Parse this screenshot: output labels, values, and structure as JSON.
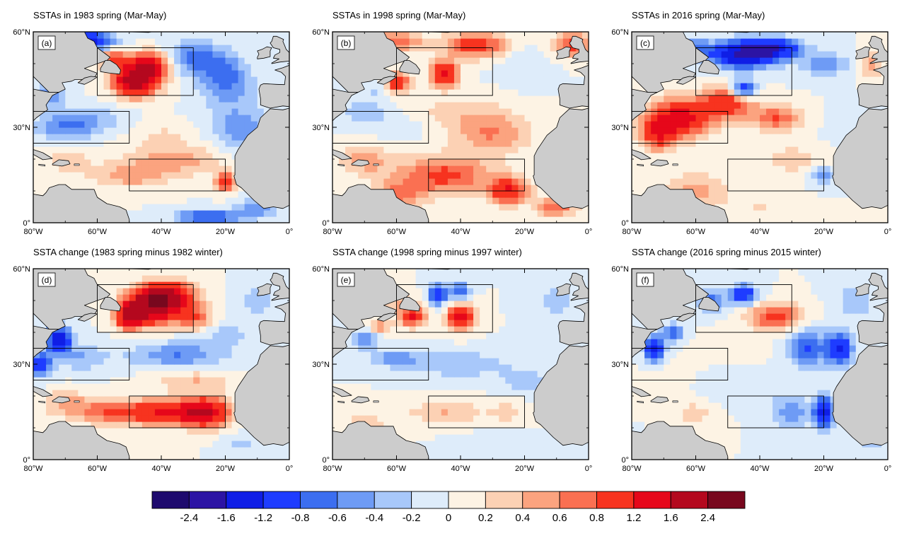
{
  "panels": [
    {
      "id": "a",
      "title": "SSTAs in 1983 spring (Mar-May)",
      "label": "(a)",
      "blobs": [
        [
          -48,
          45,
          2.0,
          7,
          5
        ],
        [
          -43,
          50,
          1.3,
          6,
          4
        ],
        [
          -55,
          52,
          0.8,
          5,
          3
        ],
        [
          -65,
          57,
          -1.6,
          9,
          3
        ],
        [
          -30,
          52,
          -0.7,
          10,
          5
        ],
        [
          -20,
          45,
          -0.7,
          8,
          7
        ],
        [
          -15,
          30,
          -0.5,
          10,
          8
        ],
        [
          -70,
          30,
          -0.6,
          10,
          4
        ],
        [
          -75,
          40,
          -0.5,
          5,
          5
        ],
        [
          -60,
          33,
          -0.3,
          10,
          4
        ],
        [
          -35,
          20,
          0.5,
          15,
          5
        ],
        [
          -20,
          13,
          1.2,
          3,
          3
        ],
        [
          -50,
          15,
          0.5,
          12,
          4
        ],
        [
          -75,
          5,
          1.6,
          2,
          3
        ],
        [
          -70,
          20,
          0.3,
          8,
          5
        ],
        [
          -25,
          2,
          -1.0,
          10,
          2
        ],
        [
          -40,
          28,
          0.2,
          10,
          4
        ],
        [
          -10,
          5,
          -0.6,
          6,
          3
        ]
      ]
    },
    {
      "id": "b",
      "title": "SSTAs in 1998 spring (Mar-May)",
      "label": "(b)",
      "blobs": [
        [
          -45,
          47,
          1.4,
          4,
          4
        ],
        [
          -60,
          44,
          1.2,
          4,
          3
        ],
        [
          -35,
          56,
          1.0,
          10,
          4
        ],
        [
          -5,
          56,
          0.9,
          6,
          4
        ],
        [
          -60,
          57,
          0.8,
          8,
          3
        ],
        [
          -40,
          35,
          0.3,
          15,
          5
        ],
        [
          -30,
          28,
          0.6,
          12,
          6
        ],
        [
          -45,
          15,
          0.9,
          15,
          6
        ],
        [
          -25,
          10,
          1.2,
          6,
          4
        ],
        [
          -60,
          8,
          0.6,
          8,
          5
        ],
        [
          -70,
          20,
          0.5,
          8,
          5
        ],
        [
          -70,
          35,
          -0.3,
          8,
          4
        ],
        [
          -60,
          30,
          -0.2,
          8,
          4
        ],
        [
          -20,
          50,
          -0.2,
          8,
          6
        ],
        [
          -78,
          5,
          1.2,
          2,
          2
        ],
        [
          -10,
          5,
          0.8,
          6,
          3
        ],
        [
          -65,
          42,
          -0.3,
          5,
          3
        ]
      ]
    },
    {
      "id": "c",
      "title": "SSTAs in 2016 spring (Mar-May)",
      "label": "(c)",
      "blobs": [
        [
          -45,
          53,
          -1.8,
          10,
          4
        ],
        [
          -35,
          55,
          -1.2,
          8,
          3
        ],
        [
          -45,
          42,
          -1.2,
          4,
          3
        ],
        [
          -20,
          50,
          -0.5,
          8,
          4
        ],
        [
          -60,
          55,
          -0.6,
          5,
          3
        ],
        [
          -65,
          33,
          1.4,
          10,
          6
        ],
        [
          -50,
          38,
          1.0,
          8,
          5
        ],
        [
          -35,
          33,
          0.8,
          8,
          4
        ],
        [
          -72,
          28,
          1.0,
          5,
          5
        ],
        [
          -30,
          20,
          0.3,
          10,
          5
        ],
        [
          -60,
          10,
          0.5,
          10,
          6
        ],
        [
          -20,
          15,
          -0.5,
          4,
          3
        ],
        [
          -10,
          30,
          -0.2,
          8,
          6
        ],
        [
          -40,
          5,
          0.2,
          10,
          4
        ],
        [
          -5,
          50,
          0.5,
          4,
          4
        ]
      ]
    },
    {
      "id": "d",
      "title": "SSTA change (1983 spring minus 1982 winter)",
      "label": "(d)",
      "blobs": [
        [
          -43,
          48,
          2.0,
          8,
          5
        ],
        [
          -38,
          52,
          1.6,
          8,
          4
        ],
        [
          -50,
          45,
          1.5,
          4,
          4
        ],
        [
          -30,
          45,
          0.8,
          6,
          4
        ],
        [
          -72,
          38,
          -1.4,
          4,
          4
        ],
        [
          -78,
          30,
          -1.0,
          4,
          4
        ],
        [
          -65,
          32,
          -0.4,
          8,
          4
        ],
        [
          -35,
          33,
          -0.6,
          15,
          4
        ],
        [
          -20,
          40,
          -0.3,
          8,
          4
        ],
        [
          -35,
          15,
          1.4,
          12,
          4
        ],
        [
          -25,
          15,
          1.0,
          6,
          5
        ],
        [
          -55,
          15,
          0.8,
          12,
          4
        ],
        [
          -70,
          18,
          0.4,
          8,
          4
        ],
        [
          -30,
          25,
          0.4,
          12,
          3
        ],
        [
          -10,
          50,
          -0.3,
          6,
          5
        ],
        [
          -15,
          5,
          -0.3,
          6,
          3
        ]
      ]
    },
    {
      "id": "e",
      "title": "SSTA change (1998 spring minus 1997 winter)",
      "label": "(e)",
      "blobs": [
        [
          -55,
          45,
          1.2,
          4,
          3
        ],
        [
          -40,
          45,
          1.5,
          4,
          4
        ],
        [
          -47,
          52,
          -1.2,
          3,
          3
        ],
        [
          -40,
          53,
          -0.8,
          3,
          3
        ],
        [
          -60,
          50,
          0.4,
          5,
          3
        ],
        [
          -65,
          42,
          0.6,
          4,
          2
        ],
        [
          -70,
          38,
          -0.6,
          4,
          3
        ],
        [
          -60,
          32,
          -0.5,
          8,
          3
        ],
        [
          -40,
          30,
          -0.4,
          15,
          4
        ],
        [
          -20,
          25,
          -0.3,
          8,
          4
        ],
        [
          -45,
          15,
          0.4,
          12,
          4
        ],
        [
          -25,
          15,
          0.3,
          6,
          3
        ],
        [
          -70,
          10,
          0.4,
          6,
          5
        ],
        [
          -10,
          50,
          -0.3,
          6,
          5
        ],
        [
          -30,
          5,
          -0.2,
          10,
          3
        ]
      ]
    },
    {
      "id": "f",
      "title": "SSTA change (2016 spring minus 2015 winter)",
      "label": "(f)",
      "blobs": [
        [
          -45,
          52,
          -1.2,
          4,
          3
        ],
        [
          -55,
          50,
          -0.8,
          4,
          3
        ],
        [
          -35,
          45,
          1.0,
          8,
          4
        ],
        [
          -73,
          35,
          -1.4,
          3,
          4
        ],
        [
          -67,
          40,
          -0.8,
          3,
          3
        ],
        [
          -25,
          35,
          -0.8,
          6,
          6
        ],
        [
          -15,
          35,
          -1.2,
          4,
          5
        ],
        [
          -20,
          15,
          -1.4,
          3,
          5
        ],
        [
          -30,
          15,
          -0.5,
          6,
          5
        ],
        [
          -45,
          20,
          -0.2,
          12,
          5
        ],
        [
          -78,
          5,
          -1.2,
          2,
          3
        ],
        [
          -60,
          15,
          0.3,
          8,
          4
        ],
        [
          -70,
          25,
          0.2,
          6,
          4
        ],
        [
          -10,
          50,
          -0.4,
          6,
          5
        ],
        [
          -5,
          5,
          -0.3,
          6,
          3
        ],
        [
          -50,
          35,
          0.2,
          10,
          3
        ]
      ]
    }
  ],
  "boxes": [
    {
      "lon": [
        -60,
        -30
      ],
      "lat": [
        40,
        55
      ]
    },
    {
      "lon": [
        -80,
        -50
      ],
      "lat": [
        25,
        35
      ]
    },
    {
      "lon": [
        -50,
        -20
      ],
      "lat": [
        10,
        20
      ]
    }
  ],
  "axes": {
    "x_ticks": [
      -80,
      -60,
      -40,
      -20,
      0
    ],
    "x_labels": [
      "80°W",
      "60°W",
      "40°W",
      "20°W",
      "0°"
    ],
    "y_ticks": [
      0,
      30,
      60
    ],
    "y_labels": [
      "0°",
      "30°N",
      "60°N"
    ],
    "lon_range": [
      -80,
      0
    ],
    "lat_range": [
      0,
      60
    ]
  },
  "colorbar": {
    "colors": [
      "#1e0a6e",
      "#2c14a4",
      "#0f1ee6",
      "#1e3cff",
      "#3c6ef0",
      "#6e9bf5",
      "#a8c8fa",
      "#deecfa",
      "#fdf3e4",
      "#fcd1b4",
      "#fba37f",
      "#fa7052",
      "#f7331f",
      "#e6071a",
      "#b4081e",
      "#78081e"
    ],
    "levels": [
      "-2.4",
      "-1.6",
      "-1.2",
      "-0.8",
      "-0.6",
      "-0.4",
      "-0.2",
      "0",
      "0.2",
      "0.4",
      "0.6",
      "0.8",
      "1.2",
      "1.6",
      "2.4"
    ],
    "thresholds": [
      -2.4,
      -1.6,
      -1.2,
      -0.8,
      -0.6,
      -0.4,
      -0.2,
      0,
      0.2,
      0.4,
      0.6,
      0.8,
      1.2,
      1.6,
      2.4
    ]
  },
  "land_color": "#cccccc"
}
